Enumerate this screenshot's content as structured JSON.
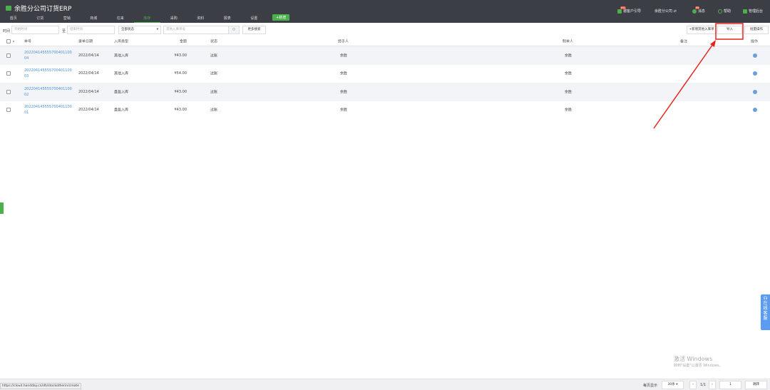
{
  "app": {
    "title": "余胜分公司订货ERP"
  },
  "nav": {
    "items": [
      "首页",
      "订货",
      "营销",
      "商城",
      "往来",
      "库存",
      "采购",
      "资料",
      "报表",
      "设置"
    ],
    "active": "库存",
    "add": "+新增"
  },
  "top_right": {
    "invite": "邀客户引导",
    "invite_badge": "0%",
    "company": "余胜分公司 ⇄",
    "messages": "消息",
    "messages_badge": "99",
    "help": "帮助",
    "admin": "管理后台"
  },
  "toolbar": {
    "time_label": "时间",
    "start_placeholder": "开始时间",
    "to": "至",
    "end_placeholder": "结束时间",
    "status_select": "全部状态",
    "search_placeholder": "其他入库单号",
    "more_search": "更多搜索",
    "new_other": "+新增其他入库单",
    "import": "导入",
    "batch": "批量操作"
  },
  "table": {
    "headers": [
      "单号",
      "录单日期",
      "入库类型",
      "金额",
      "状态",
      "经手人",
      "制单人",
      "备注",
      "操作"
    ],
    "rows": [
      {
        "id": "2022041455557004011000 4",
        "id1": "202204145555700401100",
        "id2": "04",
        "date": "2022/04/14",
        "type": "其他入库",
        "amount": "¥43.00",
        "status": "过账",
        "handler": "余胜",
        "maker": "余胜",
        "note": ""
      },
      {
        "id1": "202204145555700401100",
        "id2": "03",
        "date": "2022/04/14",
        "type": "其他入库",
        "amount": "¥54.00",
        "status": "过账",
        "handler": "余胜",
        "maker": "余胜",
        "note": ""
      },
      {
        "id1": "202204145555700401100",
        "id2": "02",
        "date": "2022/04/14",
        "type": "盘盈入库",
        "amount": "¥43.00",
        "status": "过账",
        "handler": "余胜",
        "maker": "余胜",
        "note": ""
      },
      {
        "id1": "202204145555700401100",
        "id2": "01",
        "date": "2022/04/14",
        "type": "盘盈入库",
        "amount": "¥43.00",
        "status": "过账",
        "handler": "余胜",
        "maker": "余胜",
        "note": ""
      }
    ]
  },
  "footer": {
    "per_page_label": "每页显示",
    "per_page": "30条",
    "page": "1/1",
    "page_input": "1",
    "jump": "跳转"
  },
  "status_url": "https://cloud.handday.cn/dh/stockotherin/create",
  "service": "在线客服",
  "watermark": {
    "line1": "激活 Windows",
    "line2": "转到\"设置\"以激活 Windows。"
  },
  "colors": {
    "header": "#3b3e44",
    "accent": "#4cae4c",
    "link": "#4a90d9",
    "annotation": "#e8231f"
  }
}
